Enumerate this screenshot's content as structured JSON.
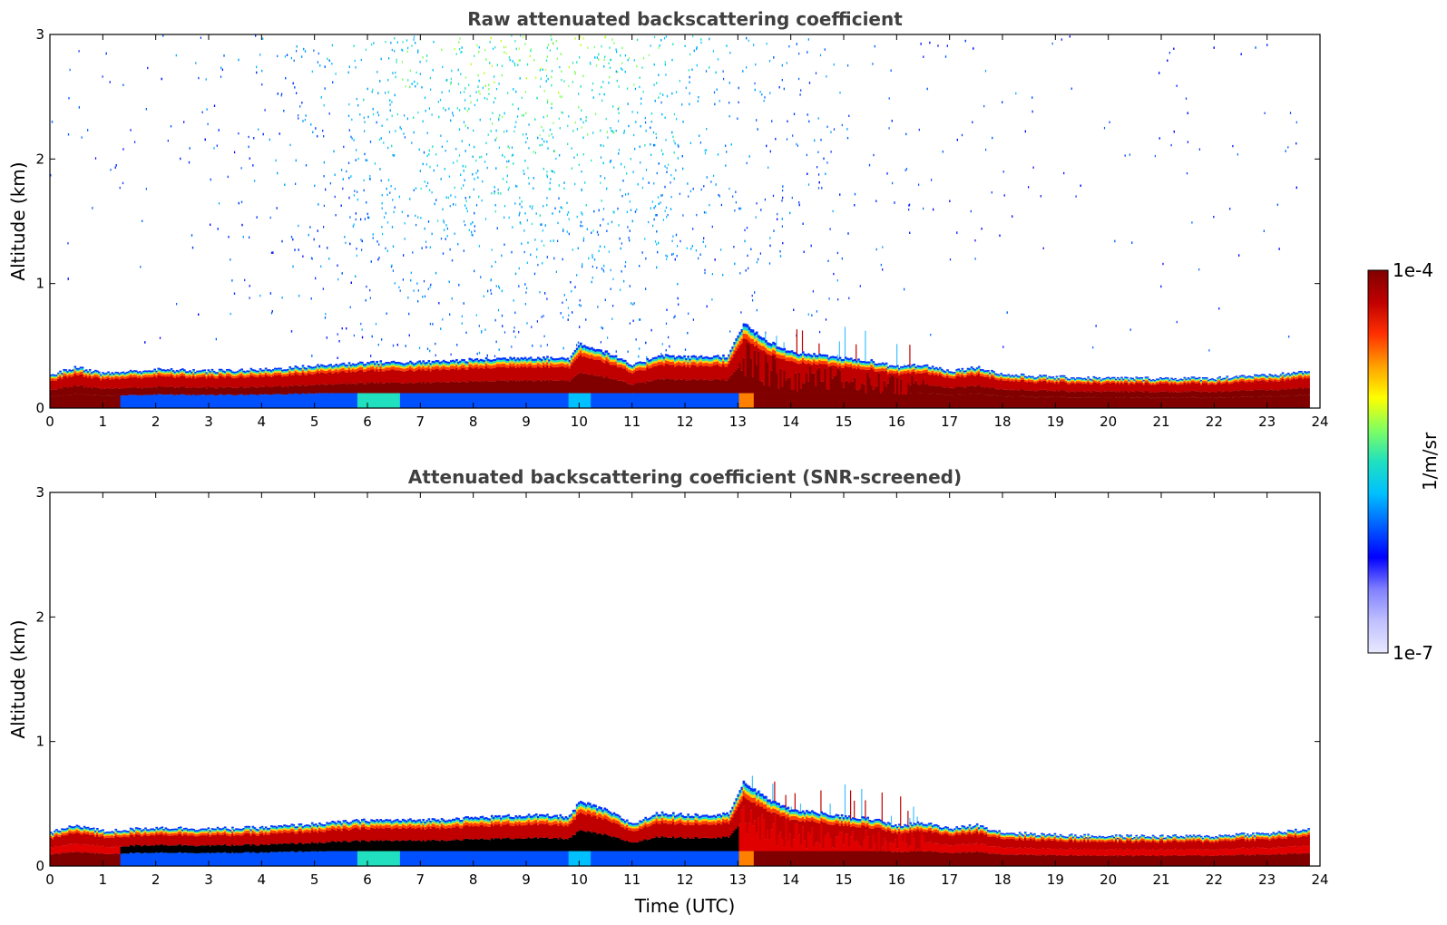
{
  "chart_data": [
    {
      "type": "heatmap",
      "title": "Raw attenuated backscattering coefficient",
      "xlabel": "",
      "ylabel": "Altitude (km)",
      "xlim": [
        0,
        24
      ],
      "ylim": [
        0,
        3
      ],
      "xticks": [
        "0",
        "1",
        "2",
        "3",
        "4",
        "5",
        "6",
        "7",
        "8",
        "9",
        "10",
        "11",
        "12",
        "13",
        "14",
        "15",
        "16",
        "17",
        "18",
        "19",
        "20",
        "21",
        "22",
        "23",
        "24"
      ],
      "yticks": [
        "0",
        "1",
        "2",
        "3"
      ],
      "grid": false,
      "data_end_hour": 23.8,
      "aerosol_layer_top_km": [
        [
          0,
          0.27
        ],
        [
          0.5,
          0.33
        ],
        [
          1,
          0.28
        ],
        [
          2,
          0.31
        ],
        [
          3,
          0.3
        ],
        [
          4,
          0.31
        ],
        [
          5,
          0.34
        ],
        [
          6,
          0.37
        ],
        [
          7,
          0.37
        ],
        [
          8,
          0.39
        ],
        [
          9,
          0.41
        ],
        [
          9.8,
          0.4
        ],
        [
          10,
          0.52
        ],
        [
          10.5,
          0.45
        ],
        [
          11,
          0.34
        ],
        [
          11.5,
          0.43
        ],
        [
          12,
          0.41
        ],
        [
          12.8,
          0.42
        ],
        [
          13.1,
          0.68
        ],
        [
          13.5,
          0.55
        ],
        [
          14,
          0.45
        ],
        [
          14.5,
          0.43
        ],
        [
          15,
          0.4
        ],
        [
          15.5,
          0.38
        ],
        [
          16,
          0.33
        ],
        [
          16.5,
          0.35
        ],
        [
          17,
          0.3
        ],
        [
          17.5,
          0.33
        ],
        [
          18,
          0.27
        ],
        [
          19,
          0.25
        ],
        [
          20,
          0.24
        ],
        [
          21,
          0.24
        ],
        [
          22,
          0.24
        ],
        [
          22.5,
          0.26
        ],
        [
          23,
          0.26
        ],
        [
          23.8,
          0.3
        ]
      ],
      "noise_region": "scattered low-signal returns between 0.3 and 3 km, densest 7-11 UTC"
    },
    {
      "type": "heatmap",
      "title": "Attenuated backscattering coefficient (SNR-screened)",
      "xlabel": "Time (UTC)",
      "ylabel": "Altitude (km)",
      "xlim": [
        0,
        24
      ],
      "ylim": [
        0,
        3
      ],
      "xticks": [
        "0",
        "1",
        "2",
        "3",
        "4",
        "5",
        "6",
        "7",
        "8",
        "9",
        "10",
        "11",
        "12",
        "13",
        "14",
        "15",
        "16",
        "17",
        "18",
        "19",
        "20",
        "21",
        "22",
        "23",
        "24"
      ],
      "yticks": [
        "0",
        "1",
        "2",
        "3"
      ],
      "grid": false,
      "data_end_hour": 23.8,
      "note": "noise above the aerosol layer removed; saturated core rendered black"
    }
  ],
  "colorbar": {
    "label": "1/m/sr",
    "max_label": "1e-4",
    "min_label": "1e-7",
    "scale": "log",
    "colors": [
      "#e8e8ff",
      "#c0c0ff",
      "#8080ff",
      "#0000ff",
      "#0060ff",
      "#00c0ff",
      "#20e0c0",
      "#80ff60",
      "#ffff00",
      "#ffa000",
      "#ff3000",
      "#c00000",
      "#800000"
    ]
  }
}
